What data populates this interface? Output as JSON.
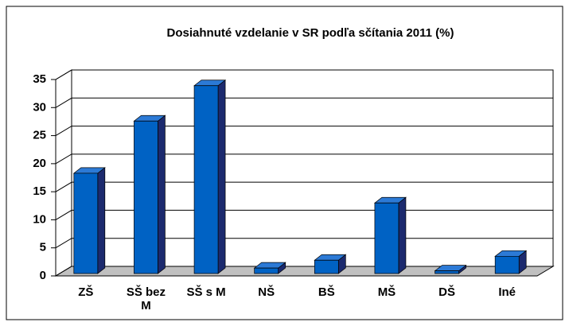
{
  "chart_data": {
    "type": "bar3d",
    "title": "Dosiahnuté vzdelanie v SR podľa sčítania 2011 (%)",
    "categories": [
      "ZŠ",
      "SŠ bez M",
      "SŠ s M",
      "NŠ",
      "BŠ",
      "MŠ",
      "DŠ",
      "Iné"
    ],
    "values": [
      18.3,
      27.6,
      33.9,
      1.4,
      2.8,
      13,
      0.9,
      3.5
    ],
    "color": "#0062c4",
    "ylim": [
      0,
      35
    ],
    "yticks": [
      0,
      5,
      10,
      15,
      20,
      25,
      30,
      35
    ],
    "grid": true
  }
}
